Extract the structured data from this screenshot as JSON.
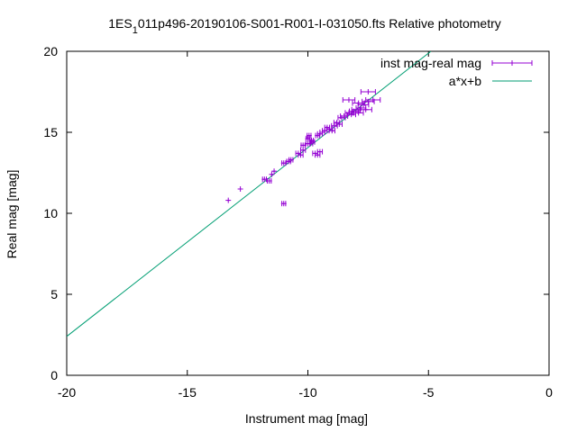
{
  "chart_data": {
    "type": "scatter",
    "title_main": "1ES",
    "title_sub": "1",
    "title_rest": "011p496-20190106-S001-R001-I-031050.fts Relative photometry",
    "xlabel": "Instrument mag [mag]",
    "ylabel": "Real mag [mag]",
    "xlim": [
      -20,
      0
    ],
    "ylim": [
      0,
      20
    ],
    "xticks": [
      -20,
      -15,
      -10,
      -5,
      0
    ],
    "yticks": [
      0,
      5,
      10,
      15,
      20
    ],
    "legend_position": "top-right",
    "grid": false,
    "series": [
      {
        "name": "inst mag-real mag",
        "kind": "points-with-x-errorbars",
        "color": "#9400d3",
        "points": [
          [
            -13.3,
            10.8,
            0.05
          ],
          [
            -12.8,
            11.5,
            0.05
          ],
          [
            -11.8,
            12.1,
            0.08
          ],
          [
            -11.6,
            12.0,
            0.08
          ],
          [
            -11.5,
            12.4,
            0.06
          ],
          [
            -11.4,
            12.6,
            0.06
          ],
          [
            -11.0,
            10.6,
            0.08
          ],
          [
            -11.0,
            13.1,
            0.08
          ],
          [
            -10.8,
            13.2,
            0.08
          ],
          [
            -10.7,
            13.3,
            0.08
          ],
          [
            -10.4,
            13.7,
            0.1
          ],
          [
            -10.3,
            13.6,
            0.1
          ],
          [
            -10.2,
            13.9,
            0.1
          ],
          [
            -10.2,
            14.2,
            0.08
          ],
          [
            -10.0,
            14.3,
            0.08
          ],
          [
            -10.0,
            14.6,
            0.08
          ],
          [
            -9.95,
            14.8,
            0.08
          ],
          [
            -9.9,
            14.3,
            0.1
          ],
          [
            -9.85,
            14.5,
            0.08
          ],
          [
            -9.8,
            14.4,
            0.08
          ],
          [
            -9.7,
            13.7,
            0.1
          ],
          [
            -9.6,
            13.6,
            0.1
          ],
          [
            -9.5,
            13.8,
            0.1
          ],
          [
            -9.6,
            14.8,
            0.08
          ],
          [
            -9.5,
            14.9,
            0.1
          ],
          [
            -9.4,
            15.0,
            0.1
          ],
          [
            -9.3,
            15.1,
            0.1
          ],
          [
            -9.2,
            15.3,
            0.1
          ],
          [
            -9.1,
            15.2,
            0.12
          ],
          [
            -9.0,
            15.1,
            0.12
          ],
          [
            -8.9,
            15.4,
            0.12
          ],
          [
            -8.8,
            15.6,
            0.12
          ],
          [
            -8.7,
            15.5,
            0.12
          ],
          [
            -8.6,
            15.9,
            0.15
          ],
          [
            -8.5,
            16.0,
            0.15
          ],
          [
            -8.3,
            16.2,
            0.15
          ],
          [
            -8.2,
            16.1,
            0.18
          ],
          [
            -8.1,
            16.3,
            0.18
          ],
          [
            -8.0,
            16.4,
            0.18
          ],
          [
            -7.9,
            16.2,
            0.2
          ],
          [
            -7.8,
            16.5,
            0.2
          ],
          [
            -7.7,
            16.7,
            0.22
          ],
          [
            -7.6,
            16.4,
            0.25
          ],
          [
            -7.5,
            16.9,
            0.25
          ],
          [
            -7.3,
            17.0,
            0.3
          ],
          [
            -7.5,
            17.5,
            0.3
          ],
          [
            -8.3,
            17.0,
            0.25
          ],
          [
            -7.9,
            16.8,
            0.25
          ]
        ]
      },
      {
        "name": "a*x+b",
        "kind": "line",
        "color": "#009e73",
        "endpoints": [
          [
            -20,
            2.4
          ],
          [
            -4.9,
            20
          ]
        ]
      }
    ]
  }
}
